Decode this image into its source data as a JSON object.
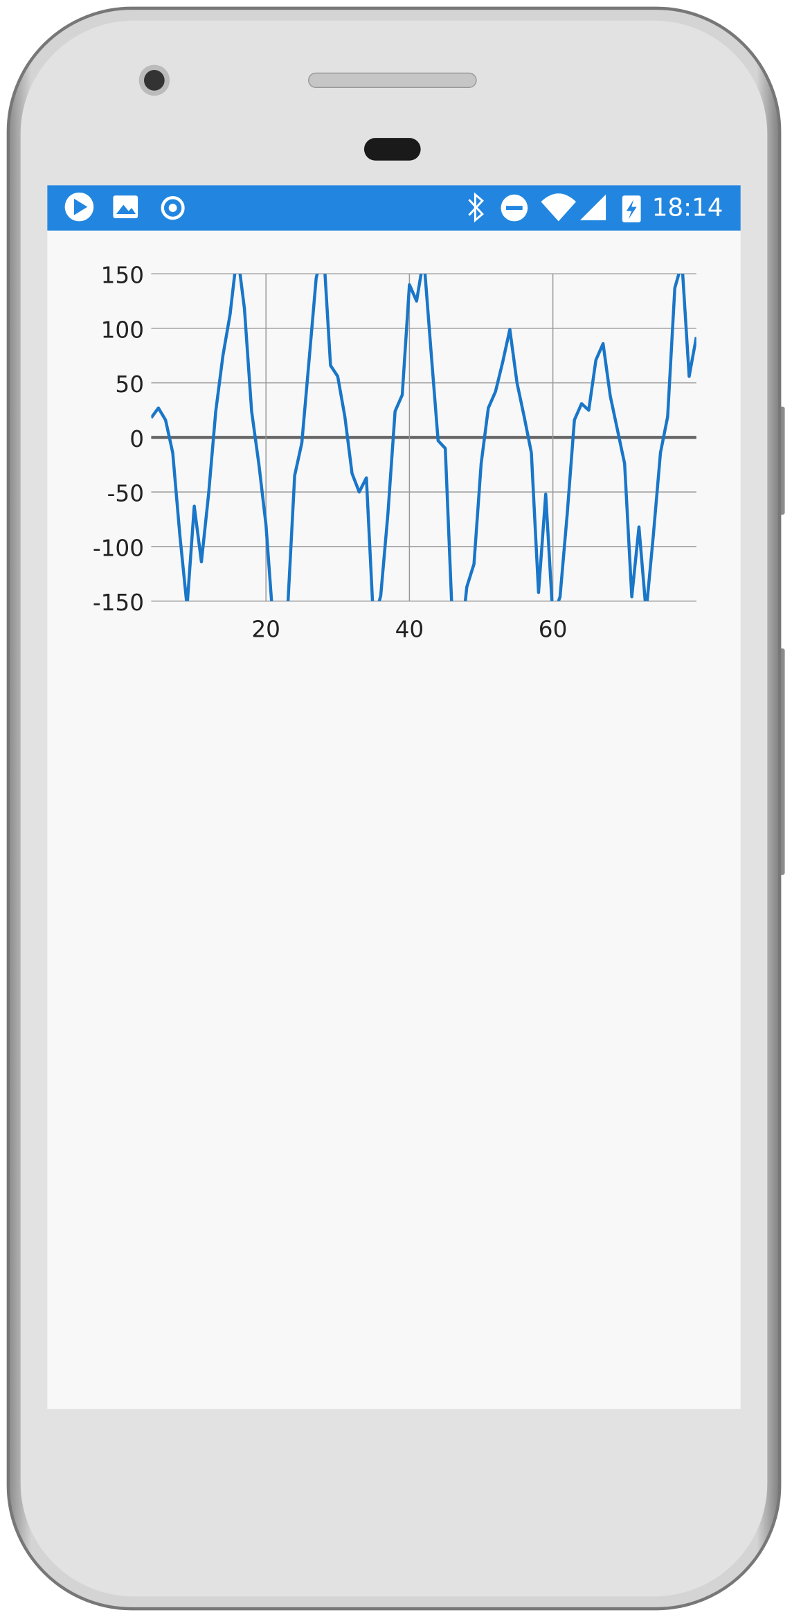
{
  "status_bar": {
    "time": "18:14"
  },
  "chart_data": {
    "type": "line",
    "color": "#1976c8",
    "grid": true,
    "x": [
      4,
      5,
      6,
      7,
      8,
      9,
      10,
      11,
      12,
      13,
      14,
      15,
      16,
      17,
      18,
      19,
      20,
      21,
      22,
      23,
      24,
      25,
      26,
      27,
      28,
      29,
      30,
      31,
      32,
      33,
      34,
      35,
      36,
      37,
      38,
      39,
      40,
      41,
      42,
      43,
      44,
      45,
      46,
      47,
      48,
      49,
      50,
      51,
      52,
      53,
      54,
      55,
      56,
      57,
      58,
      59,
      60,
      61,
      62,
      63,
      64,
      65,
      66,
      67,
      68,
      69,
      70,
      71,
      72,
      73,
      74,
      75,
      76,
      77,
      78,
      79,
      80
    ],
    "values": [
      18,
      27,
      16,
      -14,
      -90,
      -155,
      -63,
      -114,
      -52,
      24,
      75,
      113,
      170,
      118,
      24,
      -24,
      -80,
      -170,
      -200,
      -160,
      -35,
      -5,
      70,
      146,
      175,
      66,
      56,
      19,
      -33,
      -50,
      -37,
      -170,
      -145,
      -70,
      24,
      39,
      140,
      125,
      165,
      80,
      -3,
      -10,
      -170,
      -200,
      -137,
      -116,
      -24,
      27,
      42,
      69,
      99,
      50,
      19,
      -14,
      -142,
      -52,
      -165,
      -146,
      -70,
      16,
      31,
      25,
      71,
      86,
      38,
      7,
      -24,
      -146,
      -82,
      -160,
      -90,
      -14,
      19,
      137,
      160,
      56,
      92
    ],
    "xlim": [
      4,
      80
    ],
    "xticks": [
      20,
      40,
      60
    ],
    "ylim": [
      -150,
      150
    ],
    "yticks": [
      -150,
      -100,
      -50,
      0,
      50,
      100,
      150
    ]
  }
}
